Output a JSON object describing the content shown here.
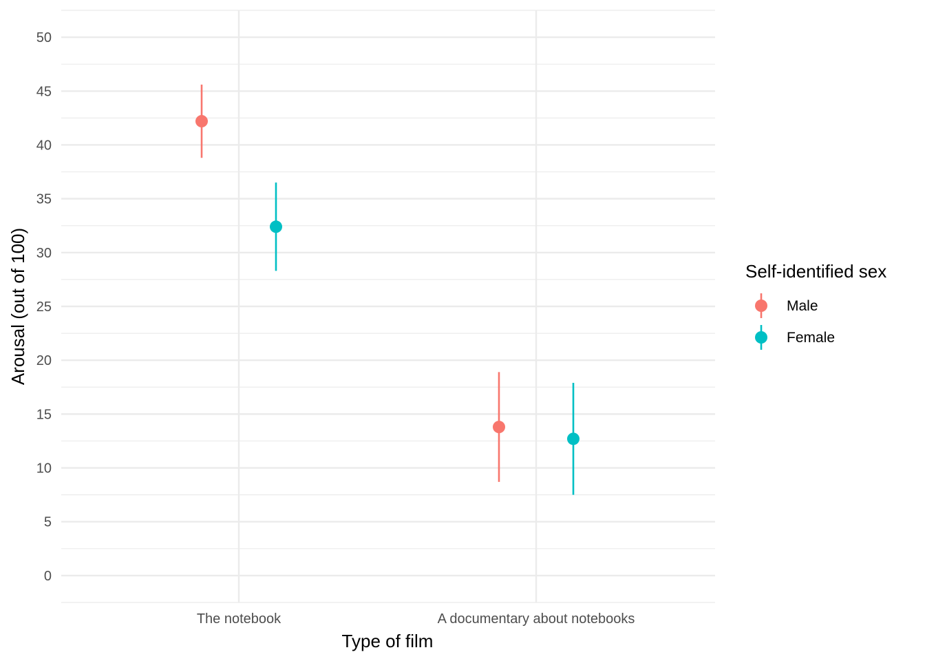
{
  "chart_data": {
    "type": "scatter",
    "subtype": "pointrange",
    "categories": [
      "The notebook",
      "A documentary about notebooks"
    ],
    "xlabel": "Type of film",
    "ylabel": "Arousal (out of 100)",
    "ylim": [
      -2.5,
      52.5
    ],
    "yticks": [
      0,
      5,
      10,
      15,
      20,
      25,
      30,
      35,
      40,
      45,
      50
    ],
    "grid": true,
    "legend": {
      "title": "Self-identified sex",
      "position": "right"
    },
    "series": [
      {
        "name": "Male",
        "color": "#F8766D",
        "values": [
          42.2,
          13.8
        ],
        "lower": [
          38.8,
          8.7
        ],
        "upper": [
          45.6,
          18.9
        ]
      },
      {
        "name": "Female",
        "color": "#00BFC4",
        "values": [
          32.4,
          12.7
        ],
        "lower": [
          28.3,
          7.5
        ],
        "upper": [
          36.5,
          17.9
        ]
      }
    ]
  }
}
